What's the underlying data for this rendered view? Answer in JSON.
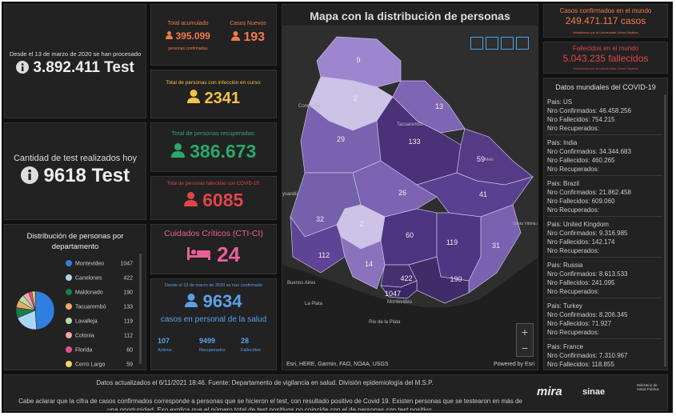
{
  "tests_total": {
    "caption": "Desde el 13 de marzo de 2020 se han procesado",
    "value": "3.892.411 Test"
  },
  "tests_today": {
    "caption": "Cantidad de test realizados hoy",
    "value": "9618 Test"
  },
  "distribution": {
    "title": "Distribución de personas por departamento",
    "items": [
      {
        "name": "Montevideo",
        "value": 1047,
        "color": "#2f7fe0"
      },
      {
        "name": "Canelones",
        "value": 422,
        "color": "#a9d6f2"
      },
      {
        "name": "Maldonado",
        "value": 190,
        "color": "#1d7a4c"
      },
      {
        "name": "Tacuarembó",
        "value": 133,
        "color": "#f0a868"
      },
      {
        "name": "Lavalleja",
        "value": 119,
        "color": "#b5dfa3"
      },
      {
        "name": "Colonia",
        "value": 112,
        "color": "#f1a7a7"
      },
      {
        "name": "Florida",
        "value": 60,
        "color": "#e2508c"
      },
      {
        "name": "Cerro Largo",
        "value": 59,
        "color": "#f3d36c"
      }
    ]
  },
  "accumulated": {
    "title": "Total acumulado",
    "value": "395.099",
    "caption": "personas confirmadas",
    "new_title": "Casos Nuevos",
    "new_value": "193"
  },
  "active": {
    "title": "Total de personas con infección en curso:",
    "value": "2341"
  },
  "recovered": {
    "title": "Total de personas recuperadas:",
    "value": "386.673"
  },
  "deceased": {
    "title": "Total de personas fallecidas con COVID-19:",
    "value": "6085"
  },
  "critical": {
    "title": "Cuidados Críticos (CTI-CI)",
    "value": "24"
  },
  "health_staff": {
    "caption": "Desde el 13 de marzo de 2020 se han confirmado",
    "value": "9634",
    "subtitle": "casos en personal de la salud",
    "stats": [
      {
        "value": "107",
        "label": "Activos"
      },
      {
        "value": "9499",
        "label": "Recuperados"
      },
      {
        "value": "28",
        "label": "Fallecidos"
      }
    ]
  },
  "map": {
    "title": "Mapa con la distribución de personas",
    "departments": [
      {
        "value": 9,
        "color": "#9d86cf"
      },
      {
        "value": 2,
        "color": "#cdc3e6"
      },
      {
        "value": 13,
        "color": "#7e66b5"
      },
      {
        "value": 29,
        "color": "#7a62b0"
      },
      {
        "value": 133,
        "color": "#4a3178"
      },
      {
        "value": 59,
        "color": "#553b86"
      },
      {
        "value": 26,
        "color": "#7c64b2"
      },
      {
        "value": 41,
        "color": "#5a4090"
      },
      {
        "value": 32,
        "color": "#7560ab"
      },
      {
        "value": 2,
        "color": "#cdc3e6"
      },
      {
        "value": 60,
        "color": "#4d3480"
      },
      {
        "value": 119,
        "color": "#4f3682"
      },
      {
        "value": 31,
        "color": "#7a62b0"
      },
      {
        "value": 112,
        "color": "#5e4494"
      },
      {
        "value": 14,
        "color": "#8a72bd"
      },
      {
        "value": 422,
        "color": "#44306f"
      },
      {
        "value": 190,
        "color": "#402c69"
      },
      {
        "value": 1047,
        "color": "#3a2762"
      }
    ],
    "places": [
      "Concordia",
      "Tacuarembó",
      "Melo",
      "ysandú",
      "Buenos Aires",
      "La Plata",
      "Montevideo",
      "Río de la Plata",
      "Santa Vitória do Palmar"
    ],
    "attribution": "Esri, HERE, Garmin, FAO, NOAA, USGS",
    "powered": "Powered by Esri"
  },
  "world_cases": {
    "title": "Casos confirmados en el mundo",
    "value": "249.471.117 casos",
    "note": "Actualizado por la Universidad Johns Hopkins"
  },
  "world_deaths": {
    "title": "Fallecidos en el mundo",
    "value": "5.043.235 fallecidos",
    "note": "Actualizado por la Universidad Johns Hopkins"
  },
  "world": {
    "title": "Datos mundiales del COVID-19",
    "countries": [
      {
        "pais": "Pais: US",
        "confirmados": "Nro Confirmados: 46.458.256",
        "fallecidos": "Nro Fallecidos: 754.215",
        "recuperados": "Nro Recuperados:"
      },
      {
        "pais": "Pais: India",
        "confirmados": "Nro Confirmados: 34.344.683",
        "fallecidos": "Nro Fallecidos: 460.265",
        "recuperados": "Nro Recuperados:"
      },
      {
        "pais": "Pais: Brazil",
        "confirmados": "Nro Confirmados: 21.862.458",
        "fallecidos": "Nro Fallecidos: 609.060",
        "recuperados": "Nro Recuperados:"
      },
      {
        "pais": "Pais: United Kingdom",
        "confirmados": "Nro Confirmados: 9.316.985",
        "fallecidos": "Nro Fallecidos: 142.174",
        "recuperados": "Nro Recuperados:"
      },
      {
        "pais": "Pais: Russia",
        "confirmados": "Nro Confirmados: 8.613.533",
        "fallecidos": "Nro Fallecidos: 241.095",
        "recuperados": "Nro Recuperados:"
      },
      {
        "pais": "Pais: Turkey",
        "confirmados": "Nro Confirmados: 8.206.345",
        "fallecidos": "Nro Fallecidos: 71.927",
        "recuperados": "Nro Recuperados:"
      },
      {
        "pais": "Pais: France",
        "confirmados": "Nro Confirmados: 7.310.967",
        "fallecidos": "Nro Fallecidos: 118.855",
        "recuperados": "Nro Recuperados:"
      }
    ]
  },
  "footer": {
    "updated": "Datos actualizados el 6/11/2021 18:46. Fuente: Departamento de vigilancia en salud. División epidemiología del M.S.P.",
    "note": "Cabe aclarar que la cifra de casos confirmados corresponde a personas que se hicieron el test, con resultado positivo de Covid 19. Existen personas que se testearon en más de una oportunidad. Eso explica que el número total de test positivos no coincide con el de personas con test positivo.",
    "logos": [
      "mira",
      "sinae",
      "Ministerio de Salud Pública"
    ]
  }
}
